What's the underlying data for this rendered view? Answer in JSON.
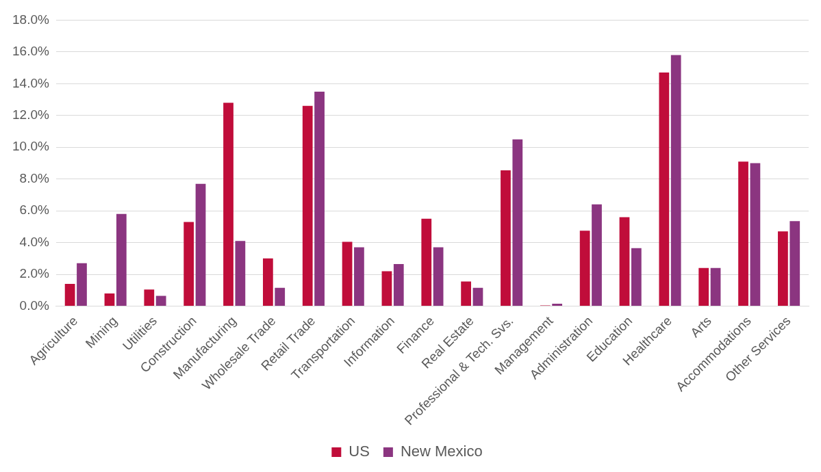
{
  "chart_data": {
    "type": "bar",
    "categories": [
      "Agriculture",
      "Mining",
      "Utilities",
      "Construction",
      "Manufacturing",
      "Wholesale Trade",
      "Retail Trade",
      "Transportation",
      "Information",
      "Finance",
      "Real Estate",
      "Professional & Tech. Svs.",
      "Management",
      "Administration",
      "Education",
      "Healthcare",
      "Arts",
      "Accommodations",
      "Other Services"
    ],
    "series": [
      {
        "name": "US",
        "color": "#c00d3a",
        "values": [
          1.4,
          0.8,
          1.05,
          5.3,
          12.8,
          3.0,
          12.6,
          4.05,
          2.2,
          5.5,
          1.55,
          8.55,
          0.05,
          4.75,
          5.6,
          14.7,
          2.4,
          9.1,
          4.7
        ]
      },
      {
        "name": "New Mexico",
        "color": "#8b3580",
        "values": [
          2.7,
          5.8,
          0.65,
          7.7,
          4.1,
          1.15,
          13.5,
          3.7,
          2.65,
          3.7,
          1.15,
          10.5,
          0.15,
          6.4,
          3.65,
          15.8,
          2.4,
          9.0,
          5.35
        ]
      }
    ],
    "ylim": [
      0,
      18
    ],
    "yticks": [
      {
        "value": 0,
        "label": "0.0%"
      },
      {
        "value": 2,
        "label": "2.0%"
      },
      {
        "value": 4,
        "label": "4.0%"
      },
      {
        "value": 6,
        "label": "6.0%"
      },
      {
        "value": 8,
        "label": "8.0%"
      },
      {
        "value": 10,
        "label": "10.0%"
      },
      {
        "value": 12,
        "label": "12.0%"
      },
      {
        "value": 14,
        "label": "14.0%"
      },
      {
        "value": 16,
        "label": "16.0%"
      },
      {
        "value": 18,
        "label": "18.0%"
      }
    ],
    "grid": "y",
    "legend": "bottom"
  }
}
